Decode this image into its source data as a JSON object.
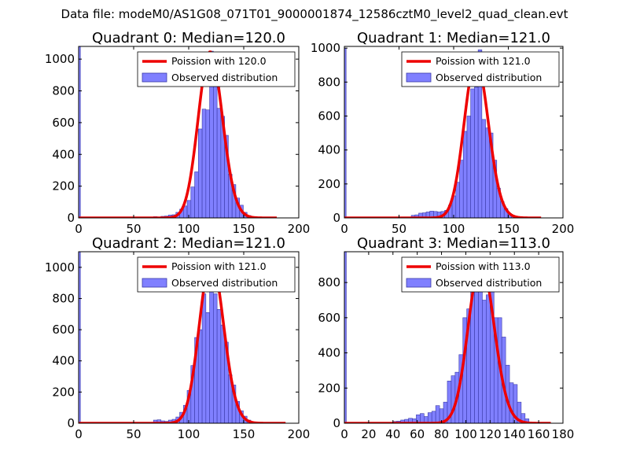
{
  "figure": {
    "suptitle": "Data file: modeM0/AS1G08_071T01_9000001874_12586cztM0_level2_quad_clean.evt"
  },
  "colors": {
    "hist_fill": "#8080ff",
    "hist_edge": "#3a3aa8",
    "poisson_line": "#ee0000"
  },
  "chart_data": [
    {
      "type": "bar",
      "title": "Quadrant 0: Median=120.0",
      "xlim": [
        0,
        200
      ],
      "ylim": [
        0,
        1080
      ],
      "xticks": [
        0,
        50,
        100,
        150,
        200
      ],
      "yticks": [
        0,
        200,
        400,
        600,
        800,
        1000
      ],
      "legend": {
        "placement": "top-right",
        "line_label": "Poission with 120.0",
        "bar_label": "Observed distribution"
      },
      "poisson_mean": 120.0,
      "poisson_peak": 1045,
      "poisson_range": [
        0,
        180
      ],
      "bin_width": 3.4,
      "bins": [
        [
          0,
          1080
        ],
        [
          68.0,
          8
        ],
        [
          74.8,
          10
        ],
        [
          78.2,
          12
        ],
        [
          81.6,
          18
        ],
        [
          85.0,
          20
        ],
        [
          88.4,
          35
        ],
        [
          91.8,
          55
        ],
        [
          95.2,
          75
        ],
        [
          98.6,
          110
        ],
        [
          102.0,
          195
        ],
        [
          105.4,
          290
        ],
        [
          108.8,
          560
        ],
        [
          112.2,
          685
        ],
        [
          115.6,
          680
        ],
        [
          119.0,
          1050
        ],
        [
          122.4,
          880
        ],
        [
          125.8,
          690
        ],
        [
          129.2,
          640
        ],
        [
          132.6,
          520
        ],
        [
          136.0,
          275
        ],
        [
          139.4,
          210
        ],
        [
          142.8,
          125
        ],
        [
          146.2,
          80
        ],
        [
          149.6,
          35
        ],
        [
          153.0,
          15
        ]
      ]
    },
    {
      "type": "bar",
      "title": "Quadrant 1: Median=121.0",
      "xlim": [
        0,
        200
      ],
      "ylim": [
        0,
        1010
      ],
      "xticks": [
        0,
        50,
        100,
        150,
        200
      ],
      "yticks": [
        0,
        200,
        400,
        600,
        800,
        1000
      ],
      "legend": {
        "placement": "top-right",
        "line_label": "Poission with 121.0",
        "bar_label": "Observed distribution"
      },
      "poisson_mean": 121.0,
      "poisson_peak": 930,
      "poisson_range": [
        0,
        180
      ],
      "bin_width": 3.4,
      "bins": [
        [
          0,
          1000
        ],
        [
          61.2,
          15
        ],
        [
          64.6,
          18
        ],
        [
          68.0,
          28
        ],
        [
          71.4,
          30
        ],
        [
          74.8,
          35
        ],
        [
          78.2,
          40
        ],
        [
          81.6,
          38
        ],
        [
          85.0,
          35
        ],
        [
          88.4,
          38
        ],
        [
          91.8,
          45
        ],
        [
          95.2,
          75
        ],
        [
          98.6,
          130
        ],
        [
          102.0,
          210
        ],
        [
          105.4,
          340
        ],
        [
          108.8,
          510
        ],
        [
          112.2,
          600
        ],
        [
          115.6,
          760
        ],
        [
          119.0,
          770
        ],
        [
          122.4,
          990
        ],
        [
          125.8,
          580
        ],
        [
          129.2,
          530
        ],
        [
          132.6,
          500
        ],
        [
          136.0,
          340
        ],
        [
          139.4,
          175
        ],
        [
          142.8,
          95
        ],
        [
          146.2,
          55
        ],
        [
          149.6,
          25
        ],
        [
          153.0,
          12
        ]
      ]
    },
    {
      "type": "bar",
      "title": "Quadrant 2: Median=121.0",
      "xlim": [
        0,
        200
      ],
      "ylim": [
        0,
        1100
      ],
      "xticks": [
        0,
        50,
        100,
        150,
        200
      ],
      "yticks": [
        0,
        200,
        400,
        600,
        800,
        1000
      ],
      "legend": {
        "placement": "top-right",
        "line_label": "Poission with 121.0",
        "bar_label": "Observed distribution"
      },
      "poisson_mean": 121.0,
      "poisson_peak": 1045,
      "poisson_range": [
        0,
        188
      ],
      "bin_width": 3.4,
      "bins": [
        [
          0,
          1100
        ],
        [
          68.0,
          20
        ],
        [
          71.4,
          22
        ],
        [
          74.8,
          15
        ],
        [
          78.2,
          12
        ],
        [
          81.6,
          20
        ],
        [
          85.0,
          25
        ],
        [
          88.4,
          40
        ],
        [
          91.8,
          70
        ],
        [
          95.2,
          115
        ],
        [
          98.6,
          210
        ],
        [
          102.0,
          370
        ],
        [
          105.4,
          550
        ],
        [
          108.8,
          600
        ],
        [
          112.2,
          830
        ],
        [
          115.6,
          710
        ],
        [
          119.0,
          1000
        ],
        [
          122.4,
          830
        ],
        [
          125.8,
          730
        ],
        [
          129.2,
          630
        ],
        [
          132.6,
          520
        ],
        [
          136.0,
          310
        ],
        [
          139.4,
          245
        ],
        [
          142.8,
          140
        ],
        [
          146.2,
          80
        ],
        [
          149.6,
          45
        ],
        [
          153.0,
          20
        ]
      ]
    },
    {
      "type": "bar",
      "title": "Quadrant 3: Median=113.0",
      "xlim": [
        0,
        180
      ],
      "ylim": [
        0,
        975
      ],
      "xticks": [
        0,
        20,
        40,
        60,
        80,
        100,
        120,
        140,
        160,
        180
      ],
      "yticks": [
        0,
        200,
        400,
        600,
        800
      ],
      "legend": {
        "placement": "top-right",
        "line_label": "Poission with 113.0",
        "bar_label": "Observed distribution"
      },
      "poisson_mean": 113.0,
      "poisson_peak": 915,
      "poisson_range": [
        0,
        170
      ],
      "bin_width": 3.2,
      "bins": [
        [
          0,
          975
        ],
        [
          40.0,
          10
        ],
        [
          43.2,
          12
        ],
        [
          46.4,
          18
        ],
        [
          49.6,
          22
        ],
        [
          52.8,
          28
        ],
        [
          56.0,
          25
        ],
        [
          59.2,
          48
        ],
        [
          62.4,
          55
        ],
        [
          65.6,
          38
        ],
        [
          68.8,
          60
        ],
        [
          72.0,
          68
        ],
        [
          75.2,
          100
        ],
        [
          78.4,
          82
        ],
        [
          81.6,
          120
        ],
        [
          84.8,
          240
        ],
        [
          88.0,
          270
        ],
        [
          91.2,
          290
        ],
        [
          94.4,
          390
        ],
        [
          97.6,
          600
        ],
        [
          100.8,
          650
        ],
        [
          104.0,
          780
        ],
        [
          107.2,
          850
        ],
        [
          110.4,
          860
        ],
        [
          113.6,
          700
        ],
        [
          116.8,
          730
        ],
        [
          120.0,
          765
        ],
        [
          123.2,
          600
        ],
        [
          126.4,
          600
        ],
        [
          129.6,
          490
        ],
        [
          132.8,
          330
        ],
        [
          136.0,
          230
        ],
        [
          139.2,
          220
        ],
        [
          142.4,
          120
        ],
        [
          145.6,
          55
        ],
        [
          148.8,
          25
        ]
      ]
    }
  ]
}
